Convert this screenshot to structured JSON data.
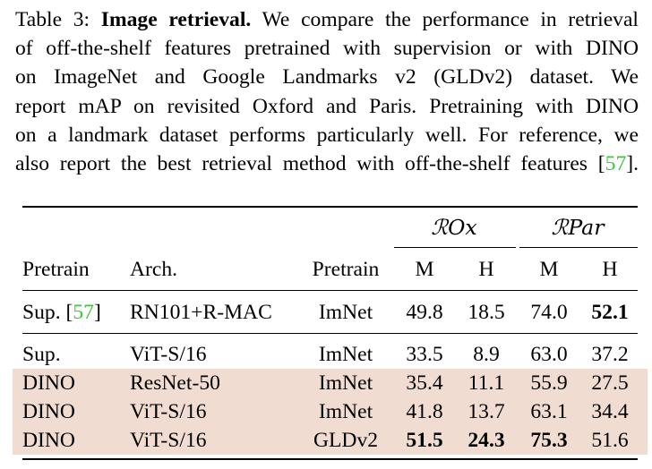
{
  "caption": {
    "label": "Table 3:",
    "title": "Image retrieval.",
    "lines": [
      " We compare the performance in retrieval",
      "of off-the-shelf features pretrained with supervision or with DINO",
      "on ImageNet and Google Landmarks v2 (GLDv2) dataset.  We",
      "report mAP on revisited Oxford and Paris. Pretraining with DINO",
      "on a landmark dataset performs particularly well. For reference, we"
    ],
    "last_line_pre": "also report the best retrieval method with off-the-shelf features [",
    "last_line_cite": "57",
    "last_line_post": "]."
  },
  "table": {
    "group_headers": {
      "rox": "ℛOx",
      "rpar": "ℛPar"
    },
    "headers": {
      "pretrain1": "Pretrain",
      "arch": "Arch.",
      "pretrain2": "Pretrain",
      "rox_m": "M",
      "rox_h": "H",
      "rpar_m": "M",
      "rpar_h": "H"
    },
    "rows": [
      {
        "method": "Sup. [",
        "cite": "57",
        "method_post": "]",
        "arch": "RN101+R-MAC",
        "data": "ImNet",
        "rox_m": "49.8",
        "rox_h": "18.5",
        "rpar_m": "74.0",
        "rpar_h": "52.1"
      },
      {
        "method": "Sup.",
        "arch": "ViT-S/16",
        "data": "ImNet",
        "rox_m": "33.5",
        "rox_h": "8.9",
        "rpar_m": "63.0",
        "rpar_h": "37.2"
      },
      {
        "method": "DINO",
        "arch": "ResNet-50",
        "data": "ImNet",
        "rox_m": "35.4",
        "rox_h": "11.1",
        "rpar_m": "55.9",
        "rpar_h": "27.5"
      },
      {
        "method": "DINO",
        "arch": "ViT-S/16",
        "data": "ImNet",
        "rox_m": "41.8",
        "rox_h": "13.7",
        "rpar_m": "63.1",
        "rpar_h": "34.4"
      },
      {
        "method": "DINO",
        "arch": "ViT-S/16",
        "data": "GLDv2",
        "rox_m": "51.5",
        "rox_h": "24.3",
        "rpar_m": "75.3",
        "rpar_h": "51.6"
      }
    ]
  },
  "colors": {
    "highlight": "#f1dcd1",
    "citation": "#33cc33"
  }
}
